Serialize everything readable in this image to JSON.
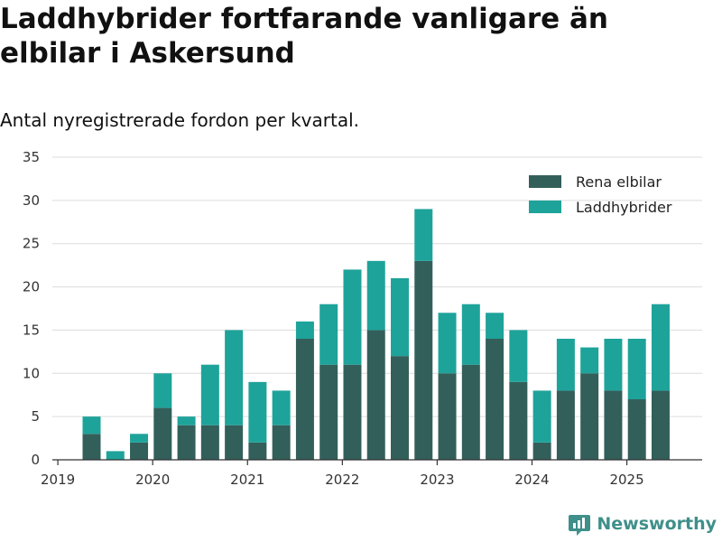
{
  "title": "Laddhybrider fortfarande vanligare än elbilar i Askersund",
  "subtitle": "Antal nyregistrerade fordon per kvartal.",
  "brand": {
    "name": "Newsworthy",
    "icon": "newsworthy-logo-icon"
  },
  "colors": {
    "series_0": "#335f5b",
    "series_1": "#1ea39a",
    "grid": "#dcdcdc",
    "axis": "#333333"
  },
  "chart_data": {
    "type": "bar",
    "stacked": true,
    "categories": [
      "2019 Q2",
      "2019 Q3",
      "2019 Q4",
      "2020 Q1",
      "2020 Q2",
      "2020 Q3",
      "2020 Q4",
      "2021 Q1",
      "2021 Q2",
      "2021 Q3",
      "2021 Q4",
      "2022 Q1",
      "2022 Q2",
      "2022 Q3",
      "2022 Q4",
      "2023 Q1",
      "2023 Q2",
      "2023 Q3",
      "2023 Q4",
      "2024 Q1",
      "2024 Q2",
      "2024 Q3",
      "2024 Q4",
      "2025 Q1",
      "2025 Q2"
    ],
    "series": [
      {
        "name": "Rena elbilar",
        "color": "#335f5b",
        "values": [
          3,
          0,
          2,
          6,
          4,
          4,
          4,
          2,
          4,
          14,
          11,
          11,
          15,
          12,
          23,
          10,
          11,
          14,
          9,
          2,
          8,
          10,
          8,
          7,
          8
        ]
      },
      {
        "name": "Laddhybrider",
        "color": "#1ea39a",
        "values": [
          2,
          1,
          1,
          4,
          1,
          7,
          11,
          7,
          4,
          2,
          7,
          11,
          8,
          9,
          6,
          7,
          7,
          3,
          6,
          6,
          6,
          3,
          6,
          7,
          10
        ]
      }
    ],
    "ylim": [
      0,
      35
    ],
    "yticks": [
      0,
      5,
      10,
      15,
      20,
      25,
      30,
      35
    ],
    "xticks": [
      "2019",
      "2020",
      "2021",
      "2022",
      "2023",
      "2024",
      "2025"
    ],
    "xlabel": "",
    "ylabel": "",
    "grid": true,
    "legend": "top-right"
  }
}
